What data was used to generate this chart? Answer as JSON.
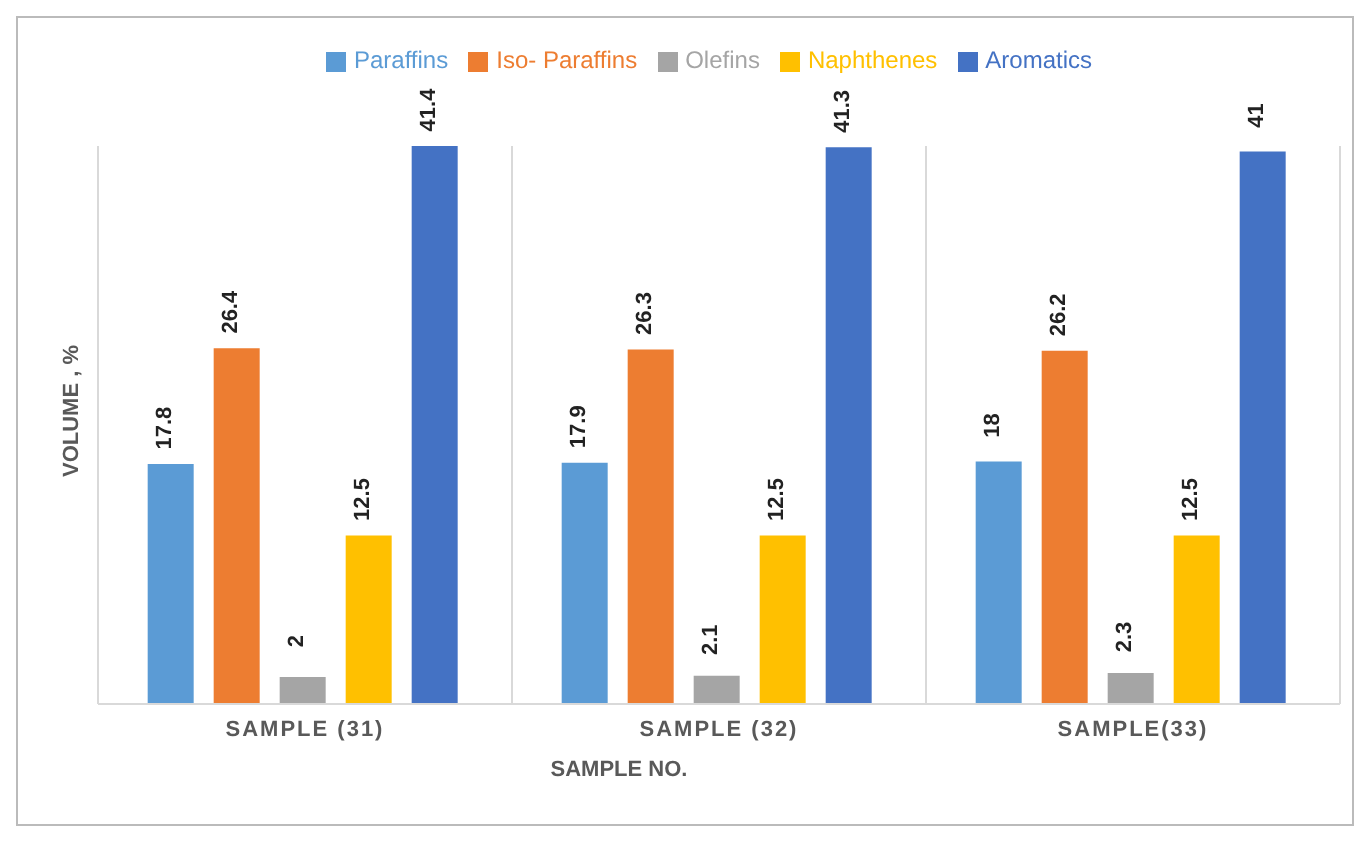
{
  "chart_data": {
    "type": "bar",
    "ylabel": "VOLUME , %",
    "xlabel": "SAMPLE NO.",
    "categories": [
      "SAMPLE (31)",
      "SAMPLE (32)",
      "SAMPLE(33)"
    ],
    "series": [
      {
        "name": "Paraffins",
        "color": "#5b9bd5",
        "values": [
          17.8,
          17.9,
          18
        ]
      },
      {
        "name": "Iso- Paraffins",
        "color": "#ed7d31",
        "values": [
          26.4,
          26.3,
          26.2
        ]
      },
      {
        "name": "Olefins",
        "color": "#a5a5a5",
        "values": [
          2,
          2.1,
          2.3
        ]
      },
      {
        "name": "Naphthenes",
        "color": "#ffc000",
        "values": [
          12.5,
          12.5,
          12.5
        ]
      },
      {
        "name": "Aromatics",
        "color": "#4472c4",
        "values": [
          41.4,
          41.3,
          41
        ]
      }
    ],
    "data_labels": true,
    "grid": "x",
    "legend": "top"
  }
}
